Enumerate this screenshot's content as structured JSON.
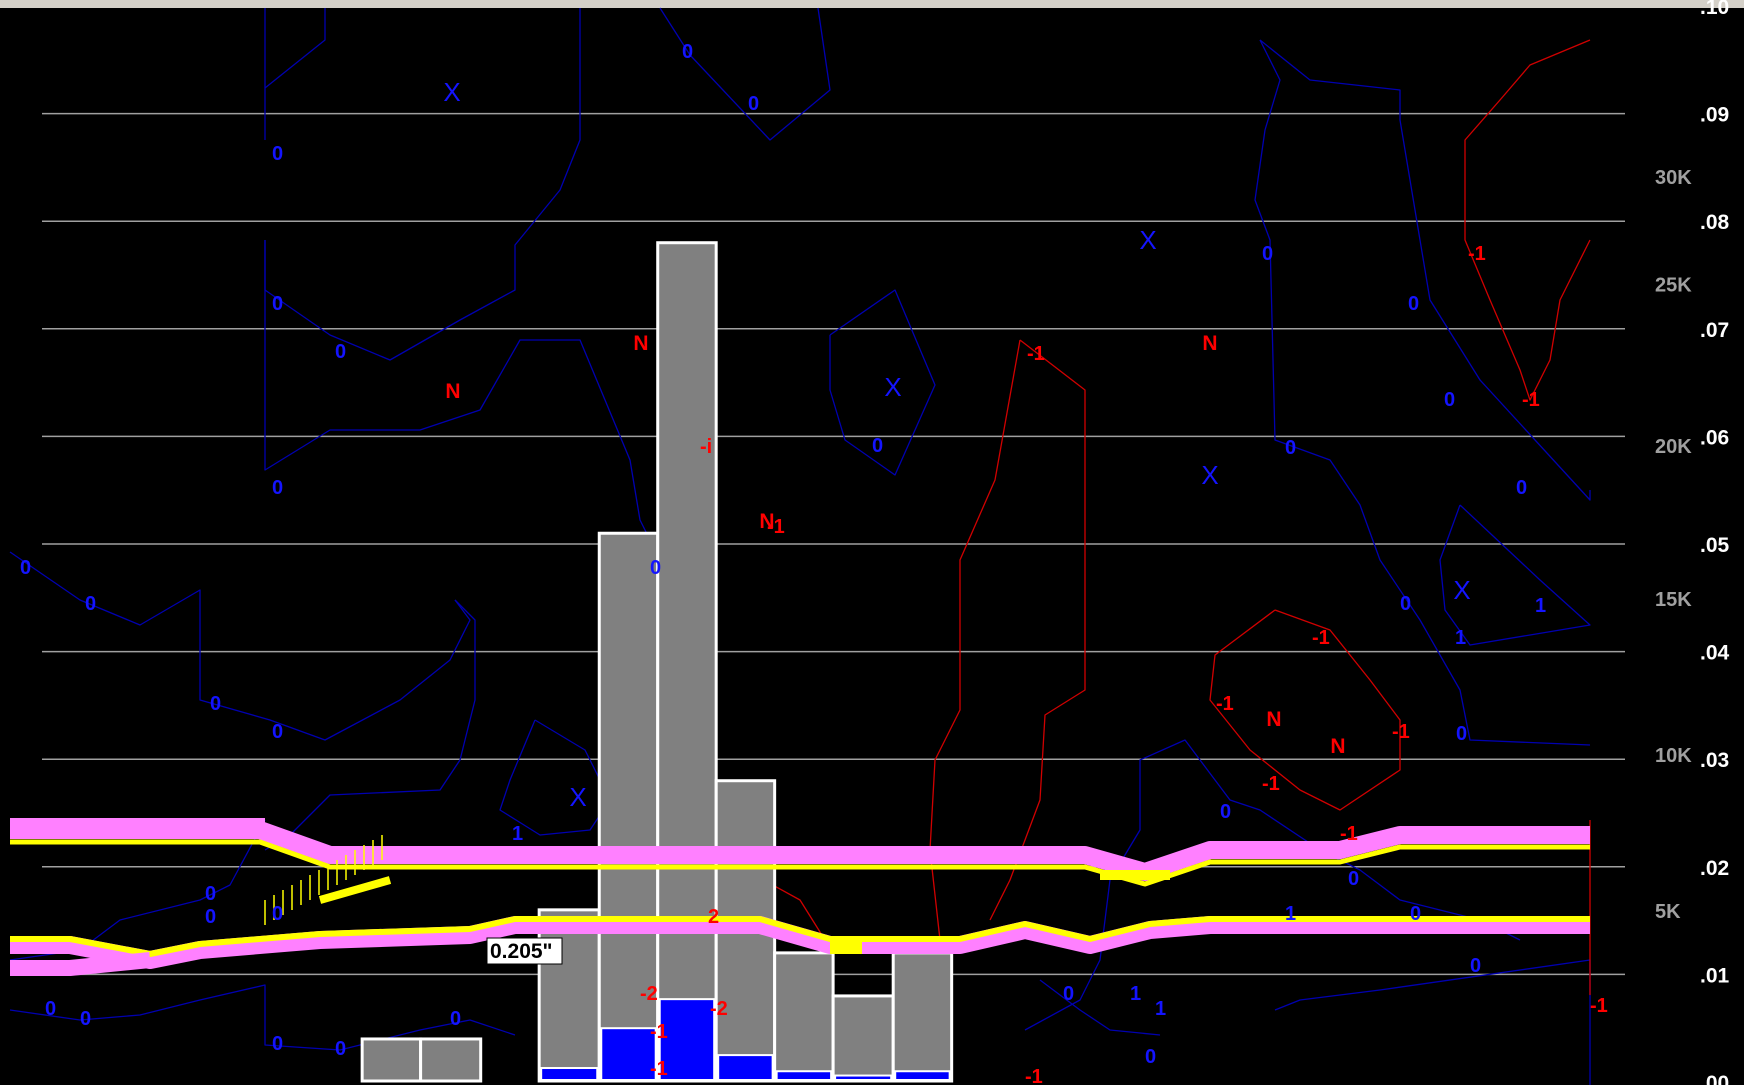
{
  "chart_data": {
    "type": "bar",
    "title": "",
    "xlabel": "",
    "ylabel": "",
    "ylim": [
      0.0,
      0.1
    ],
    "grid": true,
    "right_axis_ticks": [
      ".10",
      ".09",
      ".08",
      ".07",
      ".06",
      ".05",
      ".04",
      ".03",
      ".02",
      ".01",
      ".00"
    ],
    "right_axis_tick_values": [
      0.1,
      0.09,
      0.08,
      0.07,
      0.06,
      0.05,
      0.04,
      0.03,
      0.02,
      0.01,
      0.0
    ],
    "altitude_ticks": [
      "30K",
      "25K",
      "20K",
      "15K",
      "10K",
      "5K"
    ],
    "altitude_tick_positions": [
      0.0842,
      0.0742,
      0.0592,
      0.045,
      0.0305,
      0.016
    ],
    "bars": [
      {
        "x0": 0.223,
        "x1": 0.259,
        "total": 0.004,
        "blue": 0.0
      },
      {
        "x0": 0.259,
        "x1": 0.296,
        "total": 0.004,
        "blue": 0.0
      },
      {
        "x0": 0.332,
        "x1": 0.369,
        "total": 0.016,
        "blue": 0.0013
      },
      {
        "x0": 0.369,
        "x1": 0.405,
        "total": 0.051,
        "blue": 0.005
      },
      {
        "x0": 0.405,
        "x1": 0.441,
        "total": 0.078,
        "blue": 0.0077
      },
      {
        "x0": 0.441,
        "x1": 0.477,
        "total": 0.028,
        "blue": 0.0025
      },
      {
        "x0": 0.477,
        "x1": 0.513,
        "total": 0.012,
        "blue": 0.001
      },
      {
        "x0": 0.513,
        "x1": 0.55,
        "total": 0.008,
        "blue": 0.0006
      },
      {
        "x0": 0.55,
        "x1": 0.586,
        "total": 0.012,
        "blue": 0.001
      }
    ],
    "annotation": "0.205\"",
    "contour_labels": [
      "0",
      "1",
      "-1",
      "2",
      "-2",
      "-i"
    ],
    "markers": [
      "X",
      "N"
    ],
    "colors": {
      "background": "#000000",
      "grid": "#a0a0a0",
      "bar_fill": "#808080",
      "bar_edge": "#ffffff",
      "bar_blue": "#0000ff",
      "contour_blue": "#0000b0",
      "contour_red": "#d00000",
      "label_blue": "#1414ff",
      "label_red": "#ff0000",
      "band_pink": "#ff80ff",
      "band_yellow": "#ffff00",
      "right_labels": "#ffffff",
      "alt_labels": "#a0a0a0"
    }
  }
}
